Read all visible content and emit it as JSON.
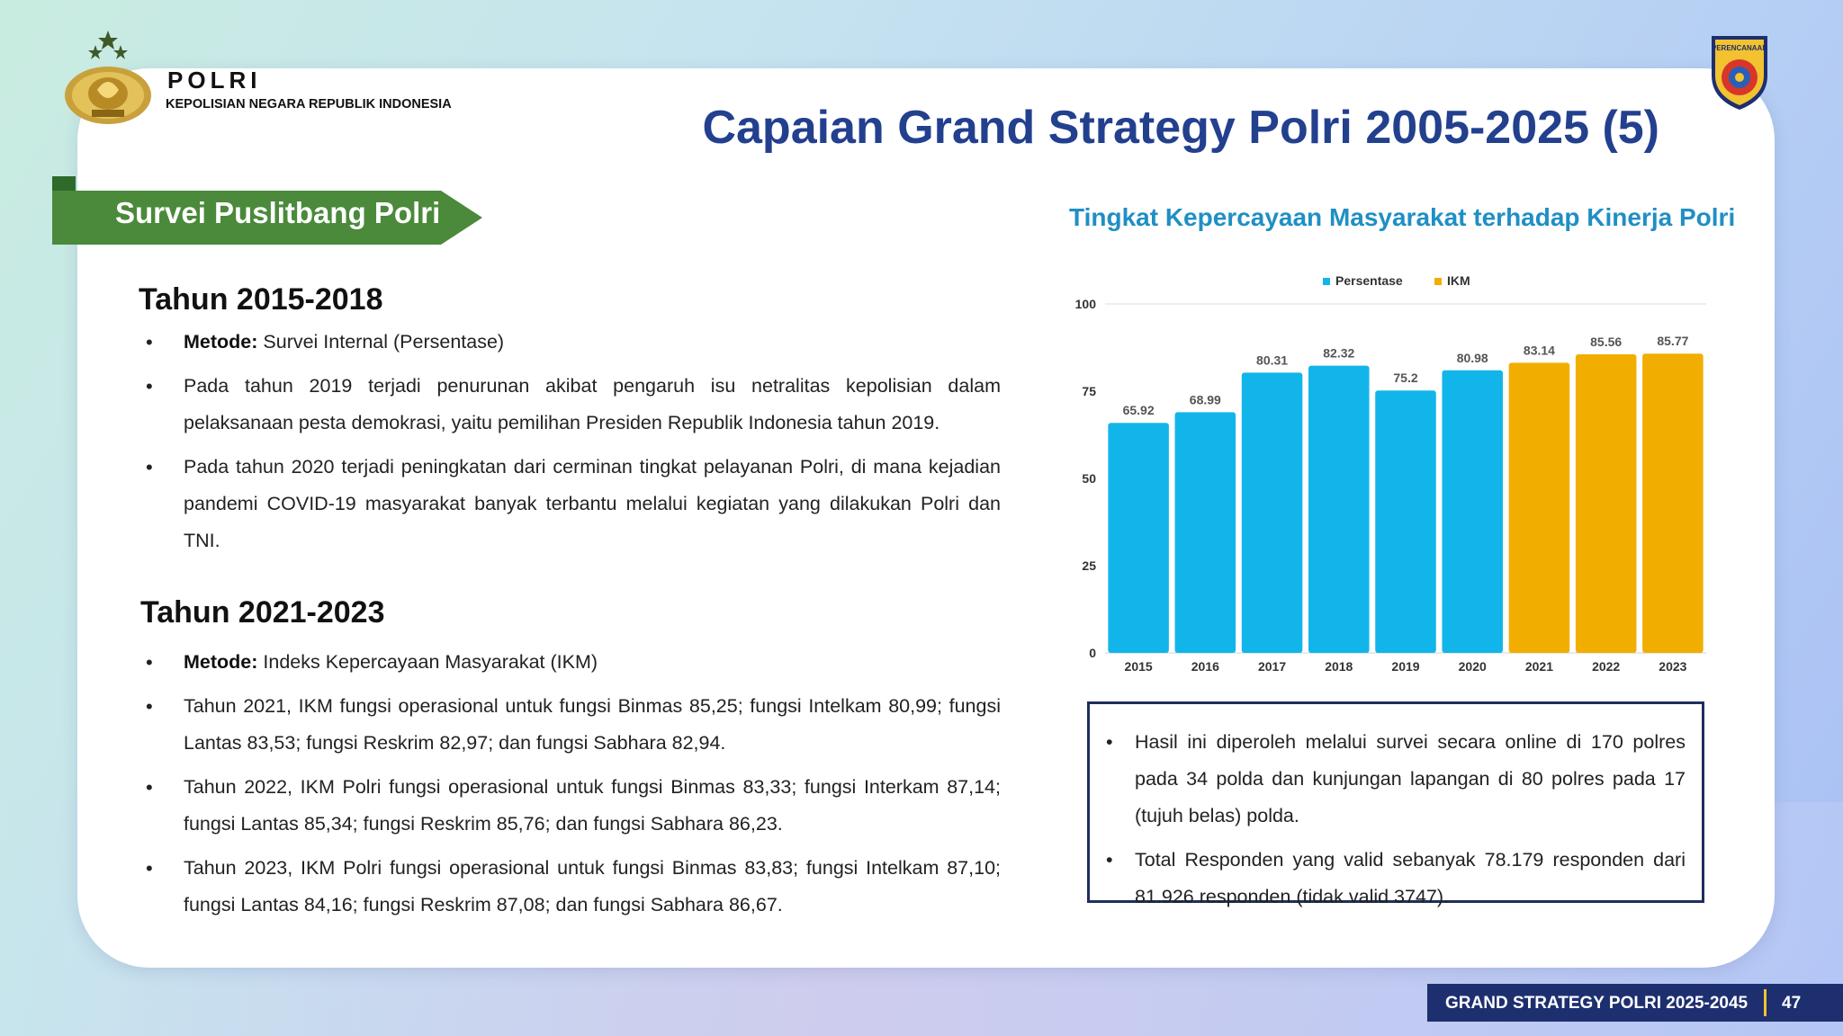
{
  "brand": {
    "name": "POLRI",
    "subtitle": "KEPOLISIAN NEGARA REPUBLIK INDONESIA",
    "right_logo_text": "PERENCANAAN"
  },
  "title": "Capaian Grand Strategy Polri 2005-2025 (5)",
  "ribbon": "Survei Puslitbang Polri",
  "sections": [
    {
      "heading": "Tahun 2015-2018",
      "bullets": [
        {
          "bold": "Metode:",
          "text": " Survei Internal (Persentase)"
        },
        {
          "bold": "",
          "text": "Pada tahun 2019 terjadi penurunan akibat pengaruh isu netralitas kepolisian dalam pelaksanaan pesta demokrasi, yaitu pemilihan Presiden Republik Indonesia tahun 2019."
        },
        {
          "bold": "",
          "text": "Pada tahun 2020 terjadi peningkatan dari cerminan tingkat pelayanan Polri, di mana kejadian pandemi COVID-19 masyarakat banyak terbantu melalui kegiatan yang dilakukan Polri dan TNI."
        }
      ]
    },
    {
      "heading": "Tahun 2021-2023",
      "bullets": [
        {
          "bold": "Metode:",
          "text": " Indeks Kepercayaan Masyarakat (IKM)"
        },
        {
          "bold": "",
          "text": "Tahun 2021, IKM fungsi operasional untuk fungsi Binmas 85,25; fungsi Intelkam 80,99; fungsi Lantas 83,53; fungsi Reskrim 82,97; dan fungsi Sabhara 82,94."
        },
        {
          "bold": "",
          "text": "Tahun 2022, IKM Polri fungsi operasional untuk fungsi Binmas 83,33; fungsi Interkam 87,14; fungsi Lantas 85,34; fungsi Reskrim 85,76; dan fungsi Sabhara 86,23."
        },
        {
          "bold": "",
          "text": "Tahun 2023, IKM Polri fungsi operasional untuk fungsi Binmas 83,83; fungsi Intelkam 87,10; fungsi Lantas 84,16; fungsi Reskrim 87,08; dan fungsi Sabhara 86,67."
        }
      ]
    }
  ],
  "chart_data": {
    "type": "bar",
    "title": "Tingkat Kepercayaan Masyarakat terhadap Kinerja Polri",
    "categories": [
      "2015",
      "2016",
      "2017",
      "2018",
      "2019",
      "2020",
      "2021",
      "2022",
      "2023"
    ],
    "values": [
      65.92,
      68.99,
      80.31,
      82.32,
      75.2,
      80.98,
      83.14,
      85.56,
      85.77
    ],
    "labels": [
      "65.92",
      "68.99",
      "80.31",
      "82.32",
      "75.2",
      "80.98",
      "83.14",
      "85.56",
      "85.77"
    ],
    "series_of_point": [
      0,
      0,
      0,
      0,
      0,
      0,
      1,
      1,
      1
    ],
    "legend": [
      {
        "name": "Persentase",
        "color": "#12b5ea"
      },
      {
        "name": "IKM",
        "color": "#f2ae00"
      }
    ],
    "legend_position": "top-center",
    "ylim": [
      0,
      100
    ],
    "yticks": [
      "0",
      "25",
      "50",
      "75",
      "100"
    ],
    "xlabel": "",
    "ylabel": "",
    "grid": false
  },
  "notes": [
    "Hasil ini diperoleh melalui survei secara online di 170 polres pada 34 polda dan kunjungan lapangan di 80 polres pada 17 (tujuh belas) polda.",
    "Total Responden yang valid sebanyak 78.179 responden dari 81.926 responden (tidak valid 3747)."
  ],
  "footer": {
    "label": "GRAND STRATEGY POLRI 2025-2045",
    "page": "47"
  },
  "colors": {
    "title": "#23408f",
    "ribbon": "#4a8a3a",
    "chart_title": "#1f8fc4",
    "footer": "#1d2f6f",
    "accent": "#f2c230"
  }
}
